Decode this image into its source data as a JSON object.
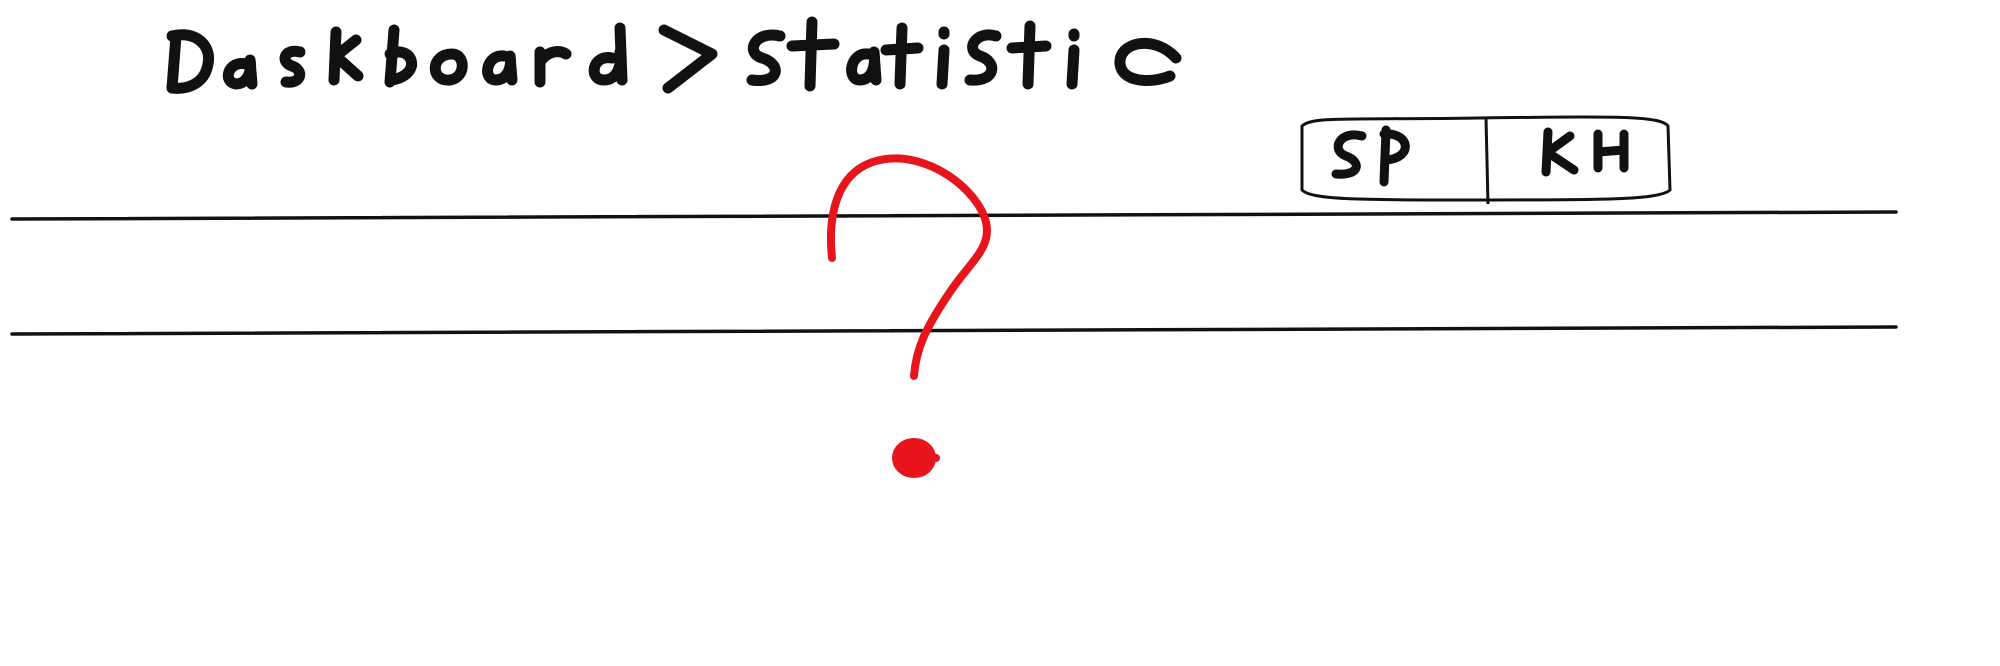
{
  "breadcrumb": {
    "text": "Dashboard > statistic"
  },
  "toggle": {
    "left_label": "SP",
    "right_label": "KH"
  },
  "placeholder": {
    "symbol": "?"
  },
  "colors": {
    "ink": "#111111",
    "accent": "#e8141c",
    "background": "#ffffff"
  }
}
